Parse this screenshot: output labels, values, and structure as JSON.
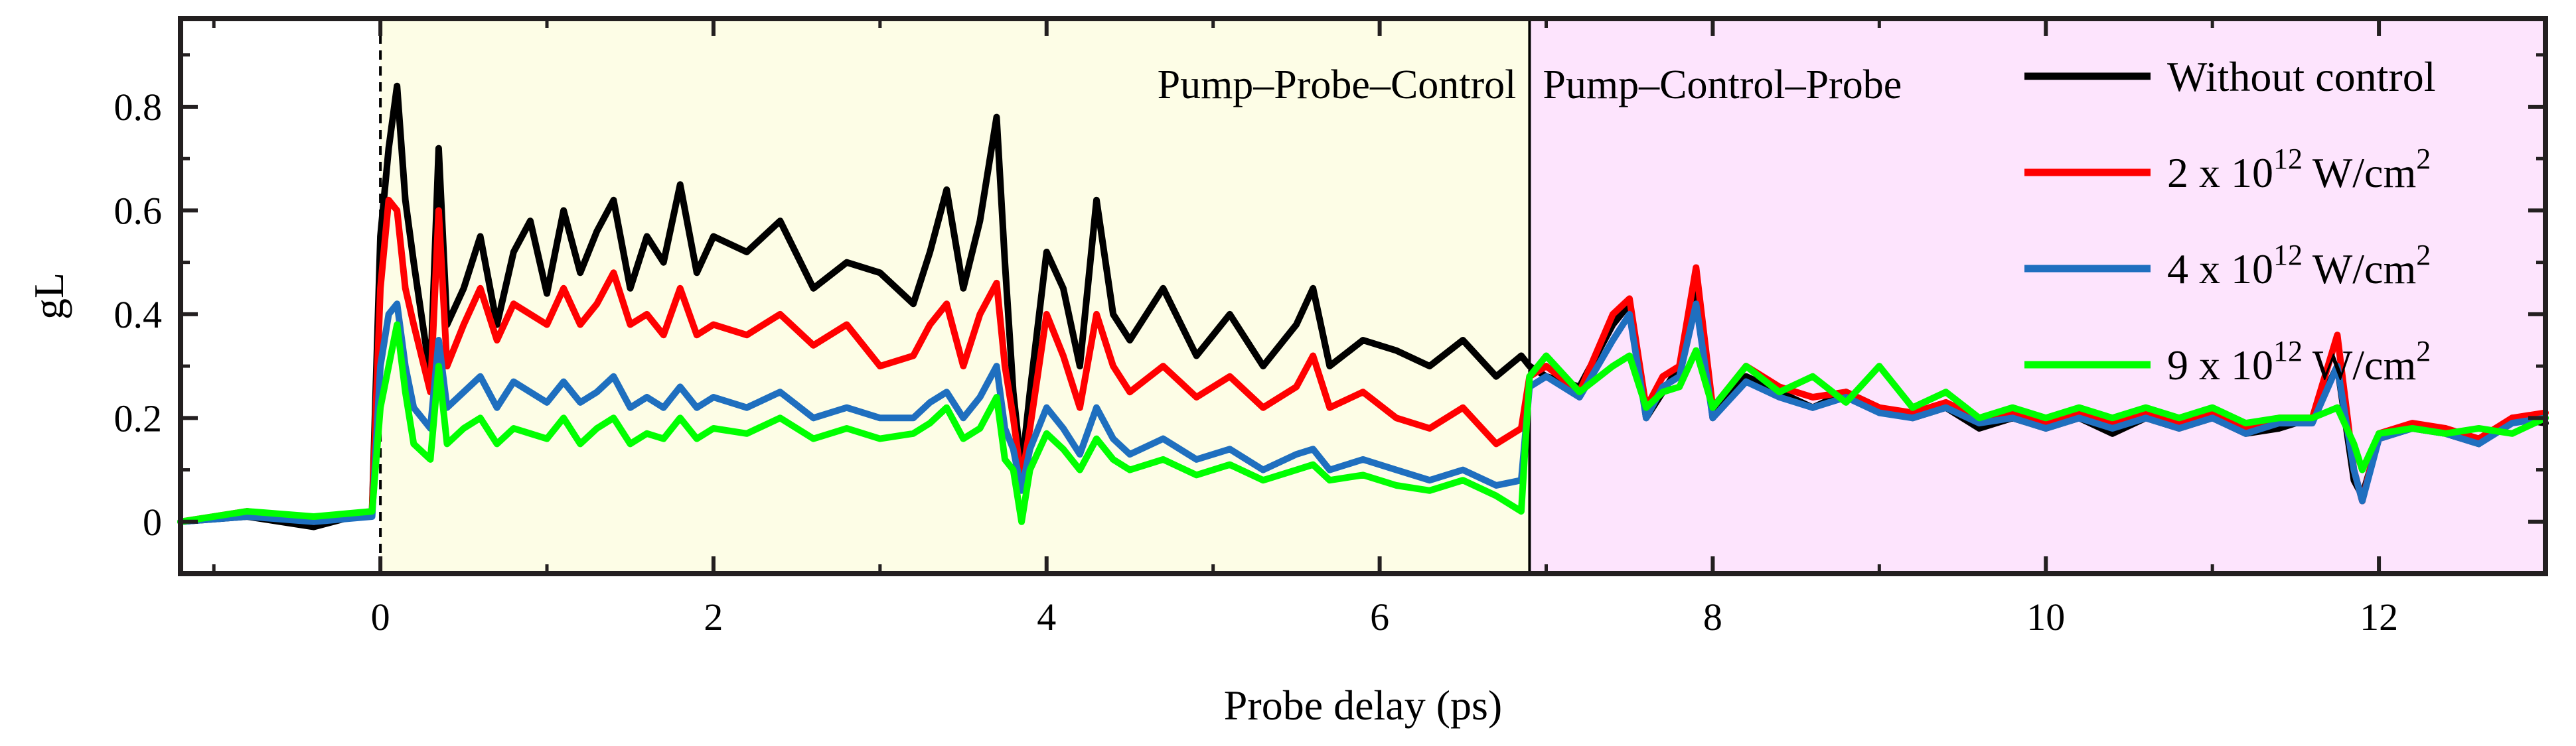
{
  "chart_data": {
    "type": "line",
    "title": "",
    "xlabel": "Probe delay (ps)",
    "ylabel": "gL",
    "xlim": [
      -1.2,
      13.0
    ],
    "ylim": [
      -0.1,
      0.97
    ],
    "xticks": [
      0,
      2,
      4,
      6,
      8,
      10,
      12
    ],
    "yticks": [
      0,
      0.2,
      0.4,
      0.6,
      0.8
    ],
    "xtick_labels": [
      "0",
      "2",
      "4",
      "6",
      "8",
      "10",
      "12"
    ],
    "ytick_labels": [
      "0",
      "0.2",
      "0.4",
      "0.6",
      "0.8"
    ],
    "grid": false,
    "legend_position": "top-right",
    "regions": [
      {
        "label": "Pump–Probe–Control",
        "x_start": 0.0,
        "x_end": 6.9,
        "color": "#fdfde6"
      },
      {
        "label": "Pump–Control–Probe",
        "x_start": 6.9,
        "x_end": 13.0,
        "color": "#fde4fd"
      }
    ],
    "series": [
      {
        "name": "Without control",
        "name_parts": {
          "base": "Without control",
          "sup": "",
          "tail": ""
        },
        "color": "#000000",
        "x": [
          -1.2,
          -0.8,
          -0.4,
          -0.05,
          0.0,
          0.05,
          0.1,
          0.15,
          0.2,
          0.3,
          0.35,
          0.4,
          0.5,
          0.6,
          0.7,
          0.8,
          0.9,
          1.0,
          1.1,
          1.2,
          1.3,
          1.4,
          1.5,
          1.6,
          1.7,
          1.8,
          1.9,
          2.0,
          2.2,
          2.4,
          2.6,
          2.8,
          3.0,
          3.2,
          3.3,
          3.4,
          3.5,
          3.6,
          3.7,
          3.75,
          3.8,
          3.85,
          3.9,
          4.0,
          4.1,
          4.2,
          4.3,
          4.4,
          4.5,
          4.7,
          4.9,
          5.1,
          5.3,
          5.5,
          5.6,
          5.7,
          5.9,
          6.1,
          6.3,
          6.5,
          6.7,
          6.85,
          6.9,
          7.0,
          7.2,
          7.4,
          7.5,
          7.6,
          7.7,
          7.8,
          7.9,
          8.0,
          8.2,
          8.4,
          8.6,
          8.8,
          9.0,
          9.2,
          9.4,
          9.6,
          9.8,
          10.0,
          10.2,
          10.4,
          10.6,
          10.8,
          11.0,
          11.2,
          11.4,
          11.6,
          11.75,
          11.85,
          11.9,
          12.0,
          12.2,
          12.4,
          12.6,
          12.8,
          13.0
        ],
        "values": [
          0.0,
          0.01,
          -0.01,
          0.02,
          0.55,
          0.72,
          0.84,
          0.62,
          0.5,
          0.28,
          0.72,
          0.38,
          0.45,
          0.55,
          0.38,
          0.52,
          0.58,
          0.44,
          0.6,
          0.48,
          0.56,
          0.62,
          0.45,
          0.55,
          0.5,
          0.65,
          0.48,
          0.55,
          0.52,
          0.58,
          0.45,
          0.5,
          0.48,
          0.42,
          0.52,
          0.64,
          0.45,
          0.58,
          0.78,
          0.5,
          0.25,
          0.1,
          0.25,
          0.52,
          0.45,
          0.3,
          0.62,
          0.4,
          0.35,
          0.45,
          0.32,
          0.4,
          0.3,
          0.38,
          0.45,
          0.3,
          0.35,
          0.33,
          0.3,
          0.35,
          0.28,
          0.32,
          0.3,
          0.28,
          0.26,
          0.38,
          0.42,
          0.2,
          0.25,
          0.3,
          0.45,
          0.2,
          0.28,
          0.25,
          0.22,
          0.25,
          0.22,
          0.2,
          0.22,
          0.18,
          0.2,
          0.18,
          0.2,
          0.17,
          0.2,
          0.18,
          0.2,
          0.17,
          0.18,
          0.2,
          0.3,
          0.08,
          0.05,
          0.16,
          0.18,
          0.17,
          0.15,
          0.2,
          0.19
        ]
      },
      {
        "name": "2 x 1012 W/cm2",
        "name_parts": {
          "base": "2 x 10",
          "sup": "12",
          "tail": " W/cm",
          "sup2": "2"
        },
        "color": "#ff0000",
        "x": [
          -1.2,
          -0.8,
          -0.4,
          -0.05,
          0.0,
          0.05,
          0.1,
          0.15,
          0.2,
          0.3,
          0.35,
          0.4,
          0.5,
          0.6,
          0.7,
          0.8,
          0.9,
          1.0,
          1.1,
          1.2,
          1.3,
          1.4,
          1.5,
          1.6,
          1.7,
          1.8,
          1.9,
          2.0,
          2.2,
          2.4,
          2.6,
          2.8,
          3.0,
          3.2,
          3.3,
          3.4,
          3.5,
          3.6,
          3.7,
          3.75,
          3.8,
          3.85,
          3.9,
          4.0,
          4.1,
          4.2,
          4.3,
          4.4,
          4.5,
          4.7,
          4.9,
          5.1,
          5.3,
          5.5,
          5.6,
          5.7,
          5.9,
          6.1,
          6.3,
          6.5,
          6.7,
          6.85,
          6.9,
          7.0,
          7.2,
          7.4,
          7.5,
          7.6,
          7.7,
          7.8,
          7.9,
          8.0,
          8.2,
          8.4,
          8.6,
          8.8,
          9.0,
          9.2,
          9.4,
          9.6,
          9.8,
          10.0,
          10.2,
          10.4,
          10.6,
          10.8,
          11.0,
          11.2,
          11.4,
          11.6,
          11.75,
          11.85,
          11.9,
          12.0,
          12.2,
          12.4,
          12.6,
          12.8,
          13.0
        ],
        "values": [
          0.0,
          0.02,
          0.0,
          0.02,
          0.45,
          0.62,
          0.6,
          0.45,
          0.38,
          0.25,
          0.6,
          0.3,
          0.38,
          0.45,
          0.35,
          0.42,
          0.4,
          0.38,
          0.45,
          0.38,
          0.42,
          0.48,
          0.38,
          0.4,
          0.36,
          0.45,
          0.36,
          0.38,
          0.36,
          0.4,
          0.34,
          0.38,
          0.3,
          0.32,
          0.38,
          0.42,
          0.3,
          0.4,
          0.46,
          0.3,
          0.2,
          0.08,
          0.18,
          0.4,
          0.32,
          0.22,
          0.4,
          0.3,
          0.25,
          0.3,
          0.24,
          0.28,
          0.22,
          0.26,
          0.32,
          0.22,
          0.25,
          0.2,
          0.18,
          0.22,
          0.15,
          0.18,
          0.28,
          0.3,
          0.25,
          0.4,
          0.43,
          0.22,
          0.28,
          0.3,
          0.49,
          0.22,
          0.3,
          0.26,
          0.24,
          0.25,
          0.22,
          0.21,
          0.23,
          0.2,
          0.21,
          0.19,
          0.21,
          0.19,
          0.21,
          0.19,
          0.21,
          0.18,
          0.2,
          0.2,
          0.36,
          0.1,
          0.04,
          0.17,
          0.19,
          0.18,
          0.16,
          0.2,
          0.21
        ]
      },
      {
        "name": "4 x 1012 W/cm2",
        "name_parts": {
          "base": "4 x 10",
          "sup": "12",
          "tail": " W/cm",
          "sup2": "2"
        },
        "color": "#1f6fbf",
        "x": [
          -1.2,
          -0.8,
          -0.4,
          -0.05,
          0.0,
          0.05,
          0.1,
          0.15,
          0.2,
          0.3,
          0.35,
          0.4,
          0.5,
          0.6,
          0.7,
          0.8,
          0.9,
          1.0,
          1.1,
          1.2,
          1.3,
          1.4,
          1.5,
          1.6,
          1.7,
          1.8,
          1.9,
          2.0,
          2.2,
          2.4,
          2.6,
          2.8,
          3.0,
          3.2,
          3.3,
          3.4,
          3.5,
          3.6,
          3.7,
          3.75,
          3.8,
          3.85,
          3.9,
          4.0,
          4.1,
          4.2,
          4.3,
          4.4,
          4.5,
          4.7,
          4.9,
          5.1,
          5.3,
          5.5,
          5.6,
          5.7,
          5.9,
          6.1,
          6.3,
          6.5,
          6.7,
          6.85,
          6.9,
          7.0,
          7.2,
          7.4,
          7.5,
          7.6,
          7.7,
          7.8,
          7.9,
          8.0,
          8.2,
          8.4,
          8.6,
          8.8,
          9.0,
          9.2,
          9.4,
          9.6,
          9.8,
          10.0,
          10.2,
          10.4,
          10.6,
          10.8,
          11.0,
          11.2,
          11.4,
          11.6,
          11.75,
          11.85,
          11.9,
          12.0,
          12.2,
          12.4,
          12.6,
          12.8,
          13.0
        ],
        "values": [
          0.0,
          0.01,
          0.0,
          0.01,
          0.3,
          0.4,
          0.42,
          0.3,
          0.22,
          0.18,
          0.35,
          0.22,
          0.25,
          0.28,
          0.22,
          0.27,
          0.25,
          0.23,
          0.27,
          0.23,
          0.25,
          0.28,
          0.22,
          0.24,
          0.22,
          0.26,
          0.22,
          0.24,
          0.22,
          0.25,
          0.2,
          0.22,
          0.2,
          0.2,
          0.23,
          0.25,
          0.2,
          0.24,
          0.3,
          0.18,
          0.14,
          0.06,
          0.14,
          0.22,
          0.18,
          0.13,
          0.22,
          0.16,
          0.13,
          0.16,
          0.12,
          0.14,
          0.1,
          0.13,
          0.14,
          0.1,
          0.12,
          0.1,
          0.08,
          0.1,
          0.07,
          0.08,
          0.26,
          0.28,
          0.24,
          0.35,
          0.4,
          0.2,
          0.26,
          0.28,
          0.42,
          0.2,
          0.27,
          0.24,
          0.22,
          0.24,
          0.21,
          0.2,
          0.22,
          0.19,
          0.2,
          0.18,
          0.2,
          0.18,
          0.2,
          0.18,
          0.2,
          0.17,
          0.19,
          0.19,
          0.3,
          0.1,
          0.04,
          0.16,
          0.18,
          0.17,
          0.15,
          0.19,
          0.2
        ]
      },
      {
        "name": "9 x 1012 W/cm2",
        "name_parts": {
          "base": "9 x 10",
          "sup": "12",
          "tail": " W/cm",
          "sup2": "2"
        },
        "color": "#00ff00",
        "x": [
          -1.2,
          -0.8,
          -0.4,
          -0.05,
          0.0,
          0.05,
          0.1,
          0.15,
          0.2,
          0.3,
          0.35,
          0.4,
          0.5,
          0.6,
          0.7,
          0.8,
          0.9,
          1.0,
          1.1,
          1.2,
          1.3,
          1.4,
          1.5,
          1.6,
          1.7,
          1.8,
          1.9,
          2.0,
          2.2,
          2.4,
          2.6,
          2.8,
          3.0,
          3.2,
          3.3,
          3.4,
          3.5,
          3.6,
          3.7,
          3.75,
          3.8,
          3.85,
          3.9,
          4.0,
          4.1,
          4.2,
          4.3,
          4.4,
          4.5,
          4.7,
          4.9,
          5.1,
          5.3,
          5.5,
          5.6,
          5.7,
          5.9,
          6.1,
          6.3,
          6.5,
          6.7,
          6.85,
          6.9,
          7.0,
          7.2,
          7.4,
          7.5,
          7.6,
          7.7,
          7.8,
          7.9,
          8.0,
          8.2,
          8.4,
          8.6,
          8.8,
          9.0,
          9.2,
          9.4,
          9.6,
          9.8,
          10.0,
          10.2,
          10.4,
          10.6,
          10.8,
          11.0,
          11.2,
          11.4,
          11.6,
          11.75,
          11.85,
          11.9,
          12.0,
          12.2,
          12.4,
          12.6,
          12.8,
          13.0
        ],
        "values": [
          0.0,
          0.02,
          0.01,
          0.02,
          0.22,
          0.3,
          0.38,
          0.25,
          0.15,
          0.12,
          0.3,
          0.15,
          0.18,
          0.2,
          0.15,
          0.18,
          0.17,
          0.16,
          0.2,
          0.15,
          0.18,
          0.2,
          0.15,
          0.17,
          0.16,
          0.2,
          0.16,
          0.18,
          0.17,
          0.2,
          0.16,
          0.18,
          0.16,
          0.17,
          0.19,
          0.22,
          0.16,
          0.18,
          0.24,
          0.12,
          0.1,
          0.0,
          0.1,
          0.17,
          0.14,
          0.1,
          0.16,
          0.12,
          0.1,
          0.12,
          0.09,
          0.11,
          0.08,
          0.1,
          0.11,
          0.08,
          0.09,
          0.07,
          0.06,
          0.08,
          0.05,
          0.02,
          0.28,
          0.32,
          0.25,
          0.3,
          0.32,
          0.22,
          0.25,
          0.26,
          0.33,
          0.22,
          0.3,
          0.25,
          0.28,
          0.23,
          0.3,
          0.22,
          0.25,
          0.2,
          0.22,
          0.2,
          0.22,
          0.2,
          0.22,
          0.2,
          0.22,
          0.19,
          0.2,
          0.2,
          0.22,
          0.15,
          0.1,
          0.17,
          0.18,
          0.17,
          0.18,
          0.17,
          0.2
        ]
      }
    ]
  }
}
